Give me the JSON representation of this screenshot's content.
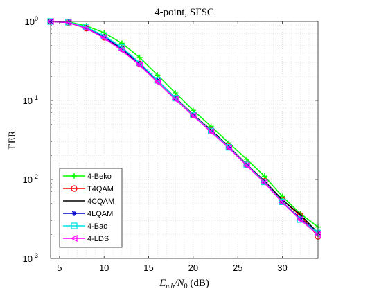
{
  "chart_data": {
    "type": "line",
    "title": "4-point, SFSC",
    "xlabel_parts": {
      "pre": "E",
      "sub": "mb",
      "mid": "/N",
      "sub2": "0",
      "post": " (dB)"
    },
    "ylabel": "FER",
    "xlim": [
      4,
      34
    ],
    "ylim": [
      0.001,
      1
    ],
    "yscale": "log",
    "grid": true,
    "legend_position": "bottom-left",
    "x_ticks": [
      {
        "value": 5,
        "label": "5"
      },
      {
        "value": 10,
        "label": "10"
      },
      {
        "value": 15,
        "label": "15"
      },
      {
        "value": 20,
        "label": "20"
      },
      {
        "value": 25,
        "label": "25"
      },
      {
        "value": 30,
        "label": "30"
      }
    ],
    "y_ticks": [
      {
        "value": 1,
        "base": "10",
        "exp": "0"
      },
      {
        "value": 0.1,
        "base": "10",
        "exp": "-1"
      },
      {
        "value": 0.01,
        "base": "10",
        "exp": "-2"
      },
      {
        "value": 0.001,
        "base": "10",
        "exp": "-3"
      }
    ],
    "x": [
      4,
      6,
      8,
      10,
      12,
      14,
      16,
      18,
      20,
      22,
      24,
      26,
      28,
      30,
      32,
      34
    ],
    "series": [
      {
        "name": "4-Beko",
        "color": "#00ff00",
        "marker": "plus",
        "values": [
          1.0,
          0.99,
          0.88,
          0.72,
          0.53,
          0.35,
          0.21,
          0.125,
          0.075,
          0.047,
          0.029,
          0.018,
          0.011,
          0.0061,
          0.0037,
          0.0025
        ]
      },
      {
        "name": "T4QAM",
        "color": "#ff0000",
        "marker": "circle",
        "values": [
          1.0,
          0.97,
          0.82,
          0.63,
          0.45,
          0.29,
          0.18,
          0.108,
          0.066,
          0.042,
          0.026,
          0.0155,
          0.0095,
          0.0055,
          0.0035,
          0.0019
        ]
      },
      {
        "name": "4CQAM",
        "color": "#000000",
        "marker": "none",
        "values": [
          1.0,
          0.97,
          0.82,
          0.63,
          0.45,
          0.29,
          0.18,
          0.108,
          0.066,
          0.042,
          0.026,
          0.0155,
          0.0095,
          0.0055,
          0.0036,
          0.0021
        ]
      },
      {
        "name": "4LQAM",
        "color": "#0000cc",
        "marker": "star",
        "values": [
          1.0,
          0.97,
          0.83,
          0.64,
          0.46,
          0.29,
          0.18,
          0.107,
          0.065,
          0.041,
          0.0255,
          0.0153,
          0.0093,
          0.0052,
          0.0032,
          0.0021
        ]
      },
      {
        "name": "4-Bao",
        "color": "#00e0e0",
        "marker": "square",
        "values": [
          1.0,
          0.98,
          0.85,
          0.66,
          0.47,
          0.3,
          0.18,
          0.107,
          0.065,
          0.041,
          0.0255,
          0.0153,
          0.0093,
          0.0052,
          0.0031,
          0.0021
        ]
      },
      {
        "name": "4-LDS",
        "color": "#ff00ff",
        "marker": "triangle-left",
        "values": [
          1.0,
          0.97,
          0.82,
          0.62,
          0.43,
          0.28,
          0.17,
          0.103,
          0.064,
          0.04,
          0.025,
          0.015,
          0.0091,
          0.0051,
          0.0031,
          0.002
        ]
      }
    ]
  }
}
